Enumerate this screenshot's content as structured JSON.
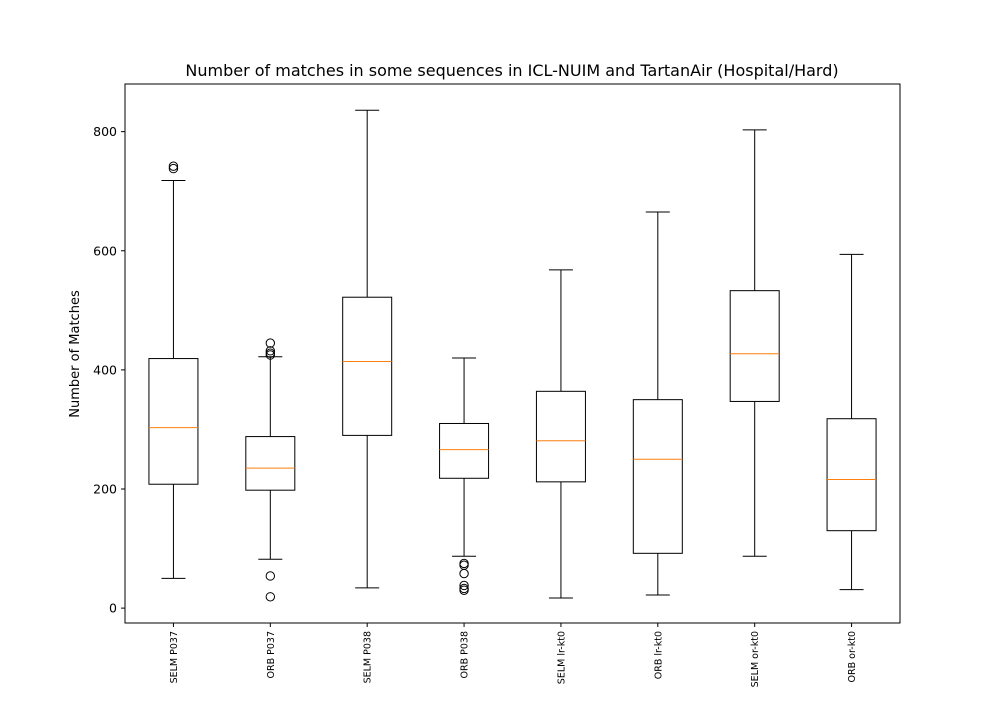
{
  "chart_data": {
    "type": "box",
    "title": "Number of matches in some sequences in ICL-NUIM and TartanAir (Hospital/Hard)",
    "xlabel": "",
    "ylabel": "Number of Matches",
    "ylim": [
      -25,
      880
    ],
    "yticks": [
      0,
      200,
      400,
      600,
      800
    ],
    "grid": false,
    "colors": {
      "box": "#000000",
      "median": "#ff7f0e",
      "whisker": "#000000",
      "flier": "#000000",
      "background": "#ffffff"
    },
    "categories": [
      "SELM P037",
      "ORB P037",
      "SELM P038",
      "ORB P038",
      "SELM lr-kt0",
      "ORB lr-kt0",
      "SELM or-kt0",
      "ORB or-kt0"
    ],
    "boxes": [
      {
        "label": "SELM P037",
        "whislo": 50,
        "q1": 208,
        "med": 303,
        "q3": 419,
        "whishi": 718,
        "fliers": [
          738,
          742
        ]
      },
      {
        "label": "ORB P037",
        "whislo": 82,
        "q1": 198,
        "med": 235,
        "q3": 288,
        "whishi": 422,
        "fliers": [
          445,
          432,
          428,
          425,
          54,
          19
        ]
      },
      {
        "label": "SELM P038",
        "whislo": 34,
        "q1": 290,
        "med": 414,
        "q3": 522,
        "whishi": 836,
        "fliers": []
      },
      {
        "label": "ORB P038",
        "whislo": 87,
        "q1": 218,
        "med": 266,
        "q3": 310,
        "whishi": 420,
        "fliers": [
          75,
          72,
          58,
          38,
          33,
          30
        ]
      },
      {
        "label": "SELM lr-kt0",
        "whislo": 17,
        "q1": 212,
        "med": 281,
        "q3": 364,
        "whishi": 568,
        "fliers": []
      },
      {
        "label": "ORB lr-kt0",
        "whislo": 22,
        "q1": 92,
        "med": 250,
        "q3": 350,
        "whishi": 665,
        "fliers": []
      },
      {
        "label": "SELM or-kt0",
        "whislo": 87,
        "q1": 347,
        "med": 427,
        "q3": 533,
        "whishi": 803,
        "fliers": []
      },
      {
        "label": "ORB or-kt0",
        "whislo": 31,
        "q1": 130,
        "med": 216,
        "q3": 318,
        "whishi": 594,
        "fliers": []
      }
    ]
  }
}
